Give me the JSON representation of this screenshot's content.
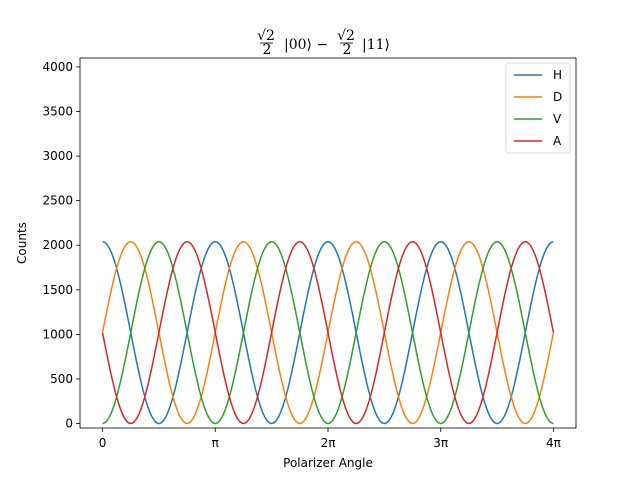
{
  "chart_data": {
    "type": "line",
    "title_parts": {
      "coef1_num": "√2",
      "coef1_den": "2",
      "ket1": "|00⟩ −",
      "coef2_num": "√2",
      "coef2_den": "2",
      "ket2": "|11⟩"
    },
    "xlabel": "Polarizer Angle",
    "ylabel": "Counts",
    "xlim": [
      -0.2,
      4.2
    ],
    "ylim": [
      -50,
      4100
    ],
    "x_ticks": [
      {
        "value": 0,
        "label": "0"
      },
      {
        "value": 1,
        "label": "π"
      },
      {
        "value": 2,
        "label": "2π"
      },
      {
        "value": 3,
        "label": "3π"
      },
      {
        "value": 4,
        "label": "4π"
      }
    ],
    "y_ticks": [
      0,
      500,
      1000,
      1500,
      2000,
      2500,
      3000,
      3500,
      4000
    ],
    "x_unit": "multiples of π",
    "legend_position": "top-right",
    "series": [
      {
        "name": "H",
        "color": "#1f77b4",
        "amplitude": 2040,
        "phase": 0
      },
      {
        "name": "D",
        "color": "#ff7f0e",
        "amplitude": 2040,
        "phase": 0.25
      },
      {
        "name": "V",
        "color": "#2ca02c",
        "amplitude": 2040,
        "phase": 0.5
      },
      {
        "name": "A",
        "color": "#d62728",
        "amplitude": 2040,
        "phase": 0.75
      }
    ],
    "model": "counts = amplitude * cos^2((x - phase) * pi), x in multiples of pi",
    "x_start": 0,
    "x_end": 4,
    "samples_per_series": 200
  }
}
